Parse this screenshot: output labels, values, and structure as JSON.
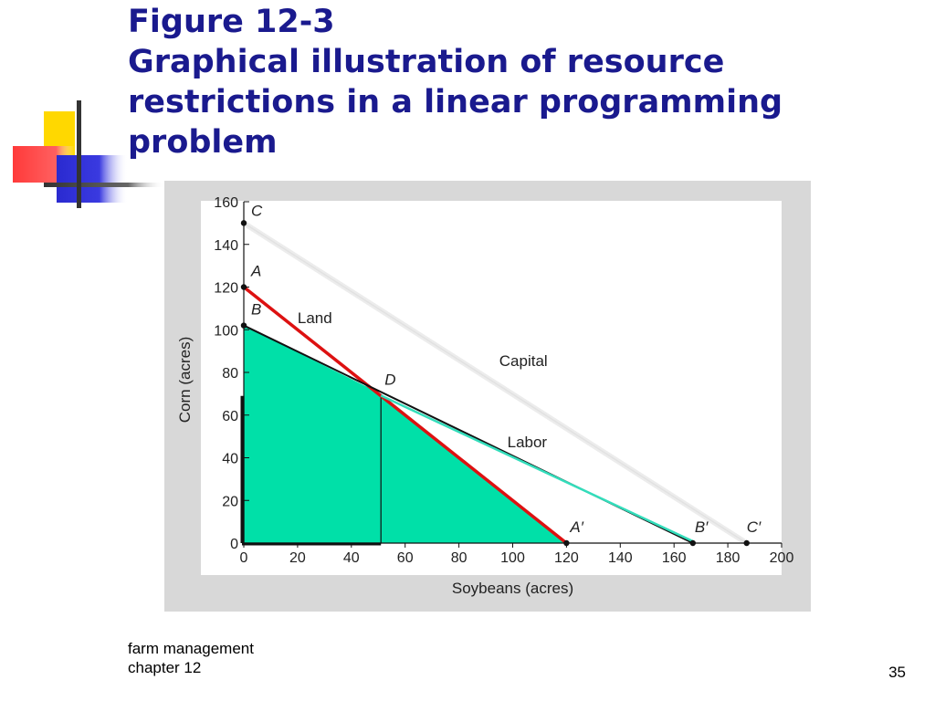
{
  "slide": {
    "title_lines": [
      "Figure 12-3",
      "Graphical illustration of resource",
      "restrictions in a linear programming",
      "problem"
    ],
    "footer": {
      "line1": "farm management",
      "line2": "chapter 12"
    },
    "page_number": "35"
  },
  "colors": {
    "title": "#1a1a8e",
    "feasible_region": "#00e0a8",
    "land_line": "#dd1111",
    "labor_line_overlay": "#33ddbb",
    "deco_yellow": "#ffd800",
    "deco_red": "#ff4040",
    "deco_blue": "#3030d0"
  },
  "chart_data": {
    "type": "line",
    "xlabel": "Soybeans (acres)",
    "ylabel": "Corn (acres)",
    "xlim": [
      0,
      200
    ],
    "ylim": [
      0,
      160
    ],
    "x_ticks": [
      0,
      20,
      40,
      60,
      80,
      100,
      120,
      140,
      160,
      180,
      200
    ],
    "y_ticks": [
      0,
      20,
      40,
      60,
      80,
      100,
      120,
      140,
      160
    ],
    "series": [
      {
        "name": "Land",
        "color": "#dd1111",
        "points": [
          [
            0,
            120
          ],
          [
            120,
            0
          ]
        ]
      },
      {
        "name": "Labor",
        "color": "#111111",
        "points": [
          [
            0,
            102
          ],
          [
            167,
            0
          ]
        ]
      },
      {
        "name": "Capital",
        "color": "#dddddd",
        "points": [
          [
            0,
            150
          ],
          [
            187,
            0
          ]
        ]
      }
    ],
    "feasible_region": [
      [
        0,
        0
      ],
      [
        0,
        102
      ],
      [
        51,
        70
      ],
      [
        120,
        0
      ]
    ],
    "inner_rectangle": {
      "x_max": 51,
      "y_max": 69
    },
    "points": [
      {
        "label": "A",
        "x": 0,
        "y": 120
      },
      {
        "label": "B",
        "x": 0,
        "y": 102
      },
      {
        "label": "C",
        "x": 0,
        "y": 150
      },
      {
        "label": "D",
        "x": 51,
        "y": 70
      },
      {
        "label": "A′",
        "x": 120,
        "y": 0
      },
      {
        "label": "B′",
        "x": 167,
        "y": 0
      },
      {
        "label": "C′",
        "x": 187,
        "y": 0
      }
    ]
  }
}
